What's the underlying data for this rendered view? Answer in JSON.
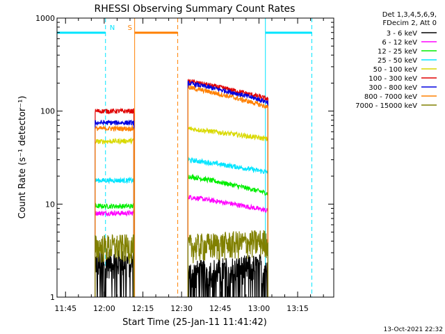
{
  "chart_data": {
    "type": "line",
    "title": "RHESSI Observing Summary Count Rates",
    "xlabel": "Start Time (25-Jan-11 11:41:42)",
    "ylabel": "Count Rate (s⁻¹ detector⁻¹)",
    "ylim": [
      1,
      1000
    ],
    "yscale": "log",
    "y_ticks": [
      "1",
      "10",
      "100",
      "1000"
    ],
    "x_ticks": [
      "11:45",
      "12:00",
      "12:15",
      "12:30",
      "12:45",
      "13:00",
      "13:15"
    ],
    "xlim_minutes": [
      41.7,
      149.0
    ],
    "legend_header": [
      "Det 1,3,4,5,6,9,",
      "FDecim 2, Att 0"
    ],
    "legend_position": "top-right",
    "footer_timestamp": "13-Oct-2021 22:32",
    "segments": [
      {
        "start": 56.5,
        "end": 71.5
      },
      {
        "start": 92.5,
        "end": 123.5
      }
    ],
    "series": [
      {
        "name": "3 - 6 keV",
        "color": "#000000",
        "level_a": [
          2.4,
          2.4
        ],
        "level_b": [
          1.8,
          2.2
        ]
      },
      {
        "name": "6 - 12 keV",
        "color": "#ff00ff",
        "level_a": [
          8.0,
          8.0
        ],
        "level_b": [
          12.0,
          8.5
        ]
      },
      {
        "name": "12 - 25 keV",
        "color": "#00ee00",
        "level_a": [
          9.5,
          9.5
        ],
        "level_b": [
          20.0,
          13.0
        ]
      },
      {
        "name": "25 - 50 keV",
        "color": "#00e5ff",
        "level_a": [
          18.0,
          18.0
        ],
        "level_b": [
          30.0,
          22.0
        ]
      },
      {
        "name": "50 - 100 keV",
        "color": "#d9d900",
        "level_a": [
          47.0,
          48.0
        ],
        "level_b": [
          65.0,
          50.0
        ]
      },
      {
        "name": "100 - 300 keV",
        "color": "#e00000",
        "level_a": [
          100.0,
          100.0
        ],
        "level_b": [
          210.0,
          135.0
        ]
      },
      {
        "name": "300 - 800 keV",
        "color": "#0000e0",
        "level_a": [
          75.0,
          75.0
        ],
        "level_b": [
          200.0,
          125.0
        ]
      },
      {
        "name": "800 - 7000 keV",
        "color": "#ff8000",
        "level_a": [
          65.0,
          65.0
        ],
        "level_b": [
          180.0,
          110.0
        ]
      },
      {
        "name": "7000 - 15000 keV",
        "color": "#808000",
        "level_a": [
          3.5,
          3.5
        ],
        "level_b": [
          3.5,
          4.0
        ]
      }
    ],
    "markers": [
      {
        "label": "N",
        "color": "#00e5ff",
        "type": "night",
        "bars": [
          {
            "start": 41.7,
            "end": 60.5
          },
          {
            "start": 122.5,
            "end": 140.5
          }
        ],
        "solid_lines": [
          41.7,
          122.5
        ],
        "dashed_lines": [
          60.5,
          140.5
        ]
      },
      {
        "label": "S",
        "color": "#ff8000",
        "type": "saa",
        "bars": [
          {
            "start": 71.8,
            "end": 88.5
          }
        ],
        "solid_lines": [
          71.8
        ],
        "dashed_lines": [
          88.5
        ]
      }
    ]
  }
}
